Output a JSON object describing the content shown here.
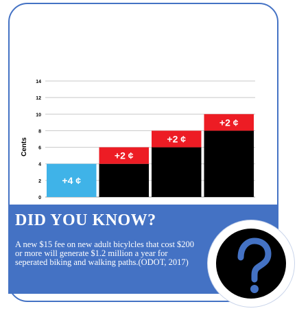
{
  "chart_data": {
    "type": "bar",
    "ylabel": "Cents",
    "ylim": [
      0,
      14
    ],
    "yticks": [
      0,
      2,
      4,
      6,
      8,
      10,
      12,
      14
    ],
    "grid": true,
    "colors": {
      "base": "#000000",
      "first": "#3fb3e8",
      "increment": "#ed1c24",
      "label": "#ffffff"
    },
    "bars": [
      {
        "base": 4,
        "increment": 0,
        "label": "+4 ¢",
        "base_color": "first"
      },
      {
        "base": 4,
        "increment": 2,
        "label": "+2 ¢",
        "base_color": "base"
      },
      {
        "base": 6,
        "increment": 2,
        "label": "+2 ¢",
        "base_color": "base"
      },
      {
        "base": 8,
        "increment": 2,
        "label": "+2 ¢",
        "base_color": "base"
      }
    ]
  },
  "banner": {
    "title": "DID YOU KNOW?",
    "text": "A new $15 fee on new adult bicylcles that cost $200 or more will generate $1.2 million a year for seperated biking and walking paths.(ODOT, 2017)",
    "background": "#4472c4"
  },
  "badge": {
    "icon": "question-mark-icon"
  }
}
